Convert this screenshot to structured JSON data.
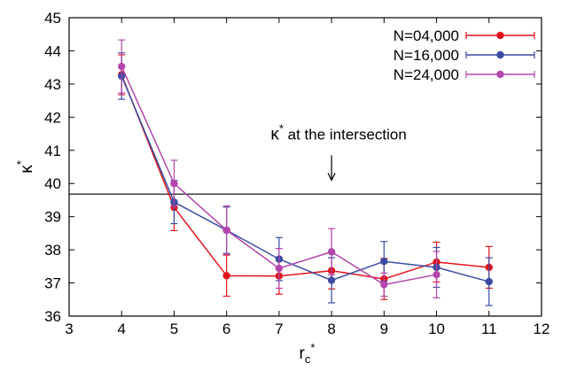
{
  "chart_data": {
    "type": "line",
    "xlabel": "r",
    "xlabel_sub": "c",
    "xlabel_sup": "*",
    "ylabel": "κ",
    "ylabel_sup": "*",
    "xlim": [
      3,
      12
    ],
    "ylim": [
      36,
      45
    ],
    "xticks": [
      3,
      4,
      5,
      6,
      7,
      8,
      9,
      10,
      11,
      12
    ],
    "yticks": [
      36,
      37,
      38,
      39,
      40,
      41,
      42,
      43,
      44,
      45
    ],
    "grid": false,
    "legend_position": "top-right",
    "hline": {
      "y": 39.68
    },
    "annotation": {
      "kappa": "κ",
      "sup": "*",
      "text": " at the intersection",
      "x": 8,
      "y_from": 40.85,
      "y_to": 40.1
    },
    "series": [
      {
        "name": "N=04,000",
        "color": "#e2141b",
        "x": [
          4,
          5,
          6,
          7,
          8,
          9,
          10,
          11
        ],
        "y": [
          43.28,
          39.28,
          37.22,
          37.21,
          37.37,
          37.12,
          37.63,
          37.47
        ],
        "err": [
          0.6,
          0.7,
          0.62,
          0.55,
          0.55,
          0.62,
          0.6,
          0.63
        ]
      },
      {
        "name": "N=16,000",
        "color": "#3a4ba1",
        "x": [
          4,
          5,
          6,
          7,
          8,
          9,
          10,
          11
        ],
        "y": [
          43.24,
          39.44,
          38.59,
          37.72,
          37.08,
          37.65,
          37.47,
          37.04
        ],
        "err": [
          0.7,
          0.65,
          0.7,
          0.65,
          0.68,
          0.6,
          0.6,
          0.72
        ]
      },
      {
        "name": "N=24,000",
        "color": "#b345ab",
        "x": [
          4,
          5,
          6,
          7,
          8,
          9,
          10
        ],
        "y": [
          43.53,
          40.0,
          38.59,
          37.44,
          37.94,
          36.95,
          37.25
        ],
        "err": [
          0.8,
          0.7,
          0.73,
          0.6,
          0.7,
          0.35,
          0.7
        ]
      }
    ]
  }
}
